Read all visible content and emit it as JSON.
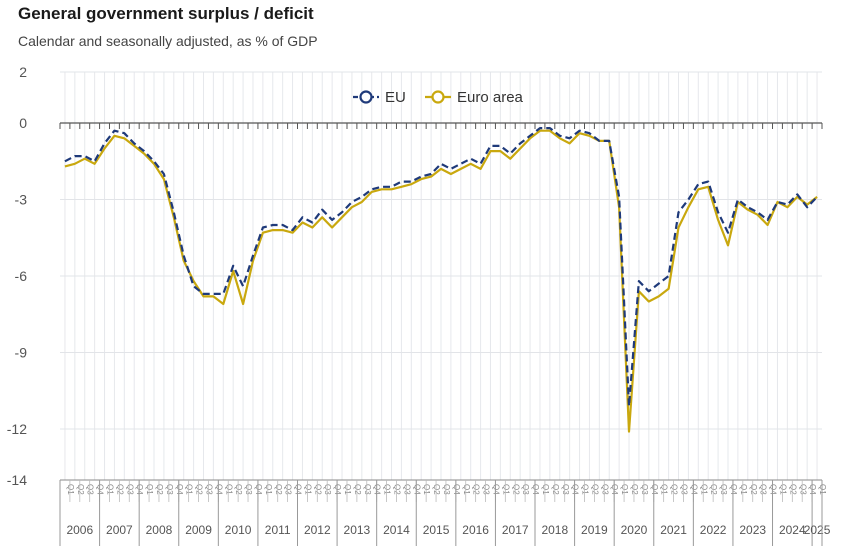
{
  "chart_data": {
    "type": "line",
    "title": "General government surplus / deficit",
    "subtitle": "Calendar and seasonally adjusted, as % of GDP",
    "xlabel": "",
    "ylabel": "",
    "ylim": [
      -14,
      2
    ],
    "yticks": [
      2,
      0,
      -3,
      -6,
      -9,
      -12,
      -14
    ],
    "grid": true,
    "legend_position": "top-center",
    "quarter_labels": [
      "Q1",
      "Q2",
      "Q3",
      "Q4"
    ],
    "years": [
      "2006",
      "2007",
      "2008",
      "2009",
      "2010",
      "2011",
      "2012",
      "2013",
      "2014",
      "2015",
      "2016",
      "2017",
      "2018",
      "2019",
      "2020",
      "2021",
      "2022",
      "2023",
      "2024",
      "2025"
    ],
    "x": [
      "2006Q1",
      "2006Q2",
      "2006Q3",
      "2006Q4",
      "2007Q1",
      "2007Q2",
      "2007Q3",
      "2007Q4",
      "2008Q1",
      "2008Q2",
      "2008Q3",
      "2008Q4",
      "2009Q1",
      "2009Q2",
      "2009Q3",
      "2009Q4",
      "2010Q1",
      "2010Q2",
      "2010Q3",
      "2010Q4",
      "2011Q1",
      "2011Q2",
      "2011Q3",
      "2011Q4",
      "2012Q1",
      "2012Q2",
      "2012Q3",
      "2012Q4",
      "2013Q1",
      "2013Q2",
      "2013Q3",
      "2013Q4",
      "2014Q1",
      "2014Q2",
      "2014Q3",
      "2014Q4",
      "2015Q1",
      "2015Q2",
      "2015Q3",
      "2015Q4",
      "2016Q1",
      "2016Q2",
      "2016Q3",
      "2016Q4",
      "2017Q1",
      "2017Q2",
      "2017Q3",
      "2017Q4",
      "2018Q1",
      "2018Q2",
      "2018Q3",
      "2018Q4",
      "2019Q1",
      "2019Q2",
      "2019Q3",
      "2019Q4",
      "2020Q1",
      "2020Q2",
      "2020Q3",
      "2020Q4",
      "2021Q1",
      "2021Q2",
      "2021Q3",
      "2021Q4",
      "2022Q1",
      "2022Q2",
      "2022Q3",
      "2022Q4",
      "2023Q1",
      "2023Q2",
      "2023Q3",
      "2023Q4",
      "2024Q1",
      "2024Q2",
      "2024Q3",
      "2024Q4",
      "2025Q1"
    ],
    "series": [
      {
        "name": "EU",
        "color": "#1f3a7a",
        "dash": true,
        "values": [
          -1.5,
          -1.3,
          -1.3,
          -1.5,
          -0.8,
          -0.3,
          -0.4,
          -0.8,
          -1.1,
          -1.5,
          -2.0,
          -3.5,
          -5.2,
          -6.4,
          -6.7,
          -6.7,
          -6.7,
          -5.6,
          -6.4,
          -5.2,
          -4.1,
          -4.0,
          -4.0,
          -4.2,
          -3.7,
          -3.9,
          -3.4,
          -3.8,
          -3.5,
          -3.1,
          -2.9,
          -2.6,
          -2.5,
          -2.5,
          -2.3,
          -2.3,
          -2.1,
          -2.0,
          -1.6,
          -1.8,
          -1.6,
          -1.4,
          -1.6,
          -0.9,
          -0.9,
          -1.2,
          -0.8,
          -0.5,
          -0.2,
          -0.2,
          -0.5,
          -0.6,
          -0.3,
          -0.4,
          -0.7,
          -0.7,
          -2.9,
          -11.1,
          -6.2,
          -6.6,
          -6.3,
          -6.0,
          -3.5,
          -3.0,
          -2.4,
          -2.3,
          -3.5,
          -4.3,
          -3.0,
          -3.3,
          -3.5,
          -3.8,
          -3.1,
          -3.2,
          -2.8,
          -3.3,
          -2.9
        ]
      },
      {
        "name": "Euro area",
        "color": "#c9a80e",
        "dash": false,
        "values": [
          -1.7,
          -1.6,
          -1.4,
          -1.6,
          -1.0,
          -0.5,
          -0.6,
          -0.9,
          -1.2,
          -1.6,
          -2.2,
          -3.7,
          -5.4,
          -6.2,
          -6.8,
          -6.8,
          -7.1,
          -5.8,
          -7.1,
          -5.4,
          -4.3,
          -4.2,
          -4.2,
          -4.3,
          -3.9,
          -4.1,
          -3.7,
          -4.1,
          -3.7,
          -3.3,
          -3.1,
          -2.7,
          -2.6,
          -2.6,
          -2.5,
          -2.4,
          -2.2,
          -2.1,
          -1.8,
          -2.0,
          -1.8,
          -1.6,
          -1.8,
          -1.1,
          -1.1,
          -1.4,
          -1.0,
          -0.6,
          -0.3,
          -0.3,
          -0.6,
          -0.8,
          -0.4,
          -0.5,
          -0.7,
          -0.7,
          -3.3,
          -12.1,
          -6.6,
          -7.0,
          -6.8,
          -6.5,
          -4.1,
          -3.3,
          -2.6,
          -2.5,
          -3.8,
          -4.8,
          -3.1,
          -3.4,
          -3.6,
          -4.0,
          -3.1,
          -3.3,
          -2.9,
          -3.2,
          -2.9
        ]
      }
    ]
  }
}
